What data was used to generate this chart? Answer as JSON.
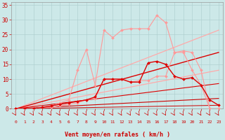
{
  "background_color": "#cce8e8",
  "grid_color": "#aacccc",
  "xlabel": "Vent moyen/en rafales ( km/h )",
  "ylabel_ticks": [
    0,
    5,
    10,
    15,
    20,
    25,
    30,
    35
  ],
  "xlim": [
    -0.5,
    23.5
  ],
  "ylim": [
    0,
    36
  ],
  "line_configs": [
    {
      "color": "#ff9999",
      "lw": 0.8,
      "marker": "D",
      "ms": 2.0,
      "x": [
        0,
        1,
        2,
        3,
        4,
        5,
        6,
        7,
        8,
        9,
        10,
        11,
        12,
        13,
        14,
        15,
        16,
        17,
        18,
        19,
        20,
        21,
        22,
        23
      ],
      "y": [
        0,
        0,
        0,
        0.5,
        1,
        2,
        3,
        13,
        20,
        8,
        26.5,
        24,
        26.5,
        27,
        27,
        27,
        31.5,
        29,
        19,
        19.5,
        19,
        13,
        0,
        0
      ]
    },
    {
      "color": "#ffaaaa",
      "lw": 0.9,
      "marker": null,
      "ms": 0,
      "x": [
        0,
        23
      ],
      "y": [
        0,
        26.5
      ]
    },
    {
      "color": "#ffaaaa",
      "lw": 0.9,
      "marker": null,
      "ms": 0,
      "x": [
        0,
        23
      ],
      "y": [
        0,
        13.0
      ]
    },
    {
      "color": "#ff9999",
      "lw": 0.8,
      "marker": "D",
      "ms": 2.0,
      "x": [
        0,
        1,
        2,
        3,
        4,
        5,
        6,
        7,
        8,
        9,
        10,
        11,
        12,
        13,
        14,
        15,
        16,
        17,
        18,
        19,
        20,
        21,
        22,
        23
      ],
      "y": [
        0,
        0,
        0,
        0.5,
        0.5,
        1,
        1.5,
        2,
        3,
        3.5,
        10,
        10,
        10,
        9,
        9.5,
        9.5,
        11,
        11,
        19,
        19,
        13,
        8,
        0,
        0
      ]
    },
    {
      "color": "#dd0000",
      "lw": 1.0,
      "marker": "D",
      "ms": 2.0,
      "x": [
        0,
        1,
        2,
        3,
        4,
        5,
        6,
        7,
        8,
        9,
        10,
        11,
        12,
        13,
        14,
        15,
        16,
        17,
        18,
        19,
        20,
        21,
        22,
        23
      ],
      "y": [
        0,
        0,
        0,
        0.5,
        1,
        1.5,
        2,
        2.5,
        3,
        4,
        10,
        10,
        10,
        9,
        9,
        15.5,
        16,
        15,
        11,
        10,
        10.5,
        8,
        3,
        1.2
      ]
    },
    {
      "color": "#dd0000",
      "lw": 1.0,
      "marker": null,
      "ms": 0,
      "x": [
        0,
        23
      ],
      "y": [
        0,
        19
      ]
    },
    {
      "color": "#dd0000",
      "lw": 0.8,
      "marker": null,
      "ms": 0,
      "x": [
        0,
        23
      ],
      "y": [
        0,
        8.5
      ]
    },
    {
      "color": "#cc0000",
      "lw": 0.8,
      "marker": null,
      "ms": 0,
      "x": [
        0,
        23
      ],
      "y": [
        0,
        3.5
      ]
    },
    {
      "color": "#cc0000",
      "lw": 0.7,
      "marker": null,
      "ms": 0,
      "x": [
        0,
        23
      ],
      "y": [
        0,
        1.2
      ]
    }
  ],
  "arrow_color": "#cc0000",
  "tick_color": "#cc0000",
  "label_color": "#cc0000"
}
